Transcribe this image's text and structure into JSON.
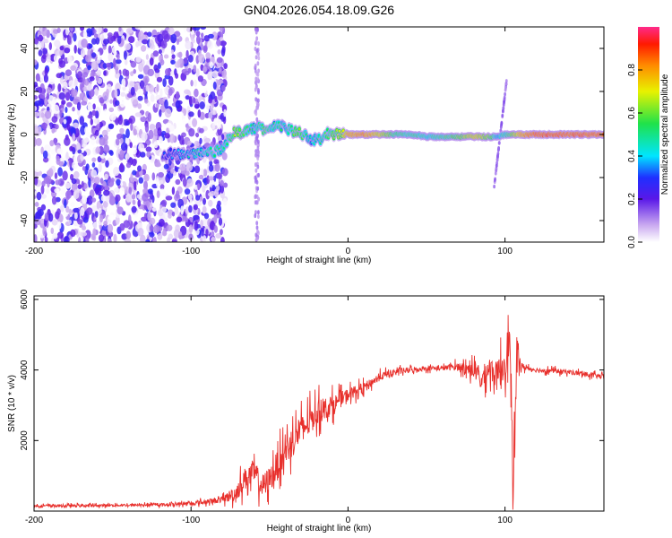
{
  "chart_data": [
    {
      "type": "heatmap",
      "title": "GN04.2026.054.18.09.G26",
      "xlabel": "Height of straight line (km)",
      "ylabel": "Frequency (Hz)",
      "xlim": [
        -200,
        163
      ],
      "ylim": [
        -50,
        50
      ],
      "x_ticks": [
        -200,
        -100,
        0,
        100
      ],
      "x_tick_labels": [
        "-200",
        "-100",
        "0",
        "100"
      ],
      "y_ticks": [
        -40,
        -20,
        0,
        20,
        40
      ],
      "y_tick_labels": [
        "-40",
        "-20",
        "0",
        "20",
        "40"
      ],
      "colorbar": {
        "label": "Normalized spectral amplitude",
        "range": [
          0,
          1
        ],
        "ticks": [
          0.0,
          0.2,
          0.4,
          0.6,
          0.8
        ],
        "tick_labels": [
          "0.0",
          "0.2",
          "0.4",
          "0.6",
          "0.8"
        ]
      },
      "ridge": {
        "x": [
          -115,
          -108,
          -100,
          -92,
          -85,
          -80,
          -76,
          -72,
          -68,
          -64,
          -60,
          -56,
          -52,
          -48,
          -44,
          -40,
          -36,
          -32,
          -28,
          -24,
          -20,
          -16,
          -12,
          -8,
          -4,
          0,
          10,
          20,
          30,
          40,
          50,
          60,
          70,
          80,
          90,
          95,
          100,
          110,
          120,
          140,
          163
        ],
        "freq": [
          -9,
          -9,
          -9,
          -8,
          -8,
          -6,
          -2,
          1,
          1,
          2,
          3,
          3,
          2,
          4,
          4,
          3,
          2,
          1,
          0,
          -3,
          -2,
          -2,
          1,
          0,
          1,
          0,
          0,
          0,
          0,
          0,
          -1,
          -1,
          -1,
          -1,
          -1,
          -1,
          0,
          0,
          0,
          0,
          0
        ],
        "amp": [
          0.3,
          0.4,
          0.45,
          0.5,
          0.55,
          0.5,
          0.55,
          0.65,
          0.6,
          0.55,
          0.5,
          0.55,
          0.6,
          0.5,
          0.55,
          0.5,
          0.55,
          0.65,
          0.55,
          0.45,
          0.5,
          0.55,
          0.6,
          0.65,
          0.7,
          0.85,
          0.9,
          0.8,
          0.6,
          0.6,
          0.55,
          0.6,
          0.65,
          0.8,
          0.7,
          0.5,
          0.55,
          0.85,
          0.95,
          0.95,
          0.95
        ]
      },
      "spurious_line_at_x": 100,
      "vertical_stripe_at_x": -58
    },
    {
      "type": "line",
      "title": "",
      "xlabel": "Height of straight line (km)",
      "ylabel": "SNR (10 * v/v)",
      "xlim": [
        -200,
        163
      ],
      "ylim": [
        0,
        6100
      ],
      "x_ticks": [
        -200,
        -100,
        0,
        100
      ],
      "x_tick_labels": [
        "-200",
        "-100",
        "0",
        "100"
      ],
      "y_ticks": [
        2000,
        4000,
        6000
      ],
      "y_tick_labels": [
        "2000",
        "4000",
        "6000"
      ],
      "series": [
        {
          "name": "SNR",
          "color": "#e8302c",
          "x": [
            -200,
            -180,
            -160,
            -140,
            -120,
            -100,
            -90,
            -80,
            -72,
            -66,
            -60,
            -55,
            -50,
            -45,
            -40,
            -35,
            -30,
            -25,
            -20,
            -15,
            -10,
            -5,
            0,
            5,
            10,
            20,
            30,
            40,
            50,
            60,
            70,
            80,
            85,
            90,
            95,
            100,
            103,
            105,
            108,
            110,
            115,
            120,
            140,
            163
          ],
          "values": [
            150,
            150,
            160,
            170,
            180,
            220,
            260,
            330,
            500,
            900,
            1100,
            700,
            900,
            1300,
            1700,
            2000,
            2300,
            2500,
            2800,
            2900,
            3000,
            3150,
            3300,
            3400,
            3500,
            3800,
            3950,
            4000,
            4050,
            4050,
            4100,
            4000,
            3700,
            4100,
            3800,
            4300,
            4900,
            500,
            4700,
            4100,
            4050,
            4000,
            3950,
            3800
          ],
          "noise": [
            80,
            80,
            80,
            80,
            80,
            120,
            150,
            200,
            500,
            700,
            800,
            700,
            800,
            900,
            900,
            1000,
            900,
            900,
            800,
            700,
            600,
            500,
            400,
            350,
            300,
            250,
            200,
            180,
            150,
            150,
            250,
            500,
            700,
            700,
            900,
            1200,
            1200,
            1200,
            900,
            250,
            150,
            150,
            150,
            150
          ]
        }
      ]
    }
  ]
}
